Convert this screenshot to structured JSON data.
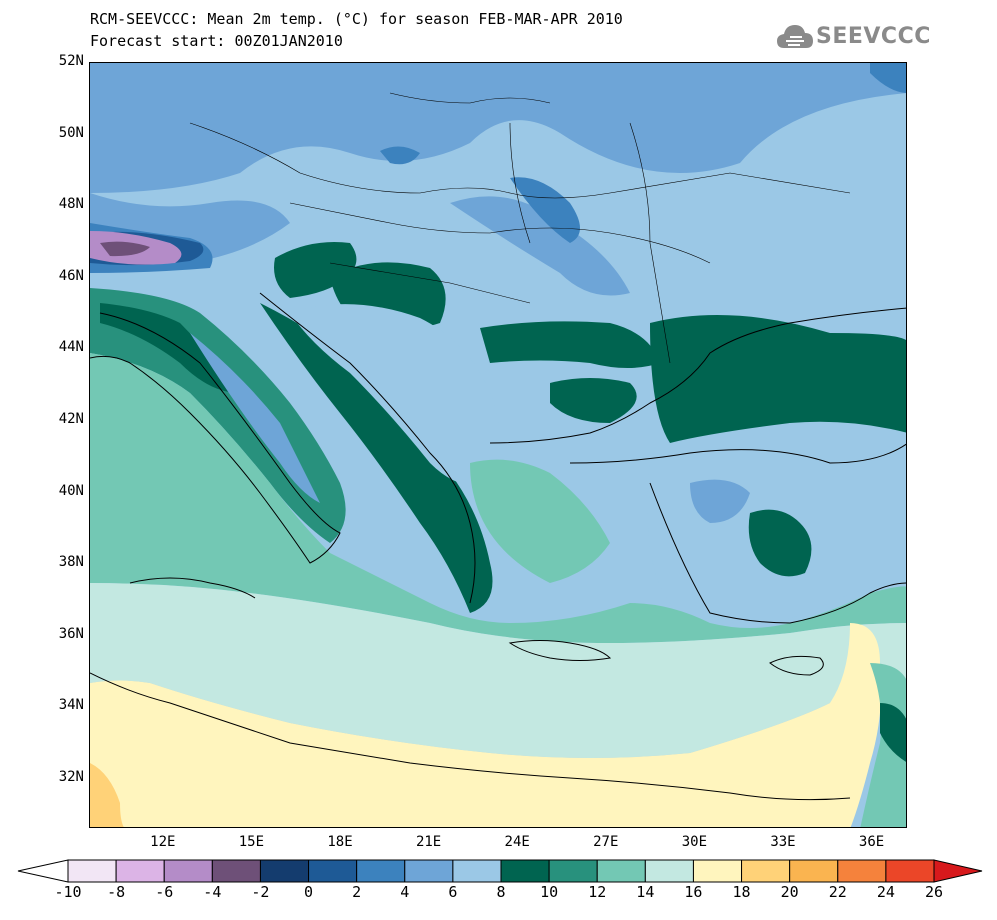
{
  "header": {
    "line1": "RCM-SEEVCCC: Mean 2m temp. (°C) for season FEB-MAR-APR 2010",
    "line2": "Forecast start: 00Z01JAN2010"
  },
  "logo": {
    "text": "SEEVCCC",
    "icon": "cloud-icon",
    "color": "#8a8a8a"
  },
  "map": {
    "lon_range": [
      9.5,
      37.2
    ],
    "lat_range": [
      30.6,
      52.0
    ],
    "lat_labels": [
      {
        "lat": 52,
        "text": "52N"
      },
      {
        "lat": 50,
        "text": "50N"
      },
      {
        "lat": 48,
        "text": "48N"
      },
      {
        "lat": 46,
        "text": "46N"
      },
      {
        "lat": 44,
        "text": "44N"
      },
      {
        "lat": 42,
        "text": "42N"
      },
      {
        "lat": 40,
        "text": "40N"
      },
      {
        "lat": 38,
        "text": "38N"
      },
      {
        "lat": 36,
        "text": "36N"
      },
      {
        "lat": 34,
        "text": "34N"
      },
      {
        "lat": 32,
        "text": "32N"
      }
    ],
    "lon_labels": [
      {
        "lon": 12,
        "text": "12E"
      },
      {
        "lon": 15,
        "text": "15E"
      },
      {
        "lon": 18,
        "text": "18E"
      },
      {
        "lon": 21,
        "text": "21E"
      },
      {
        "lon": 24,
        "text": "24E"
      },
      {
        "lon": 27,
        "text": "27E"
      },
      {
        "lon": 30,
        "text": "30E"
      },
      {
        "lon": 33,
        "text": "33E"
      },
      {
        "lon": 36,
        "text": "36E"
      }
    ]
  },
  "colorbar": {
    "labels": [
      "-10",
      "-8",
      "-6",
      "-4",
      "-2",
      "0",
      "2",
      "4",
      "6",
      "8",
      "10",
      "12",
      "14",
      "16",
      "18",
      "20",
      "22",
      "24",
      "26"
    ],
    "under_color": "#ffffff",
    "over_color": "#d7191c",
    "colors": [
      "#f2e6f5",
      "#dcb4e6",
      "#b48cc8",
      "#6e5078",
      "#143c6e",
      "#1e5a96",
      "#3c82be",
      "#6ea5d7",
      "#9bc8e6",
      "#006450",
      "#28917d",
      "#73c8b4",
      "#c3e8e1",
      "#fff5be",
      "#ffd278",
      "#fab450",
      "#f5823c",
      "#eb4628"
    ]
  }
}
